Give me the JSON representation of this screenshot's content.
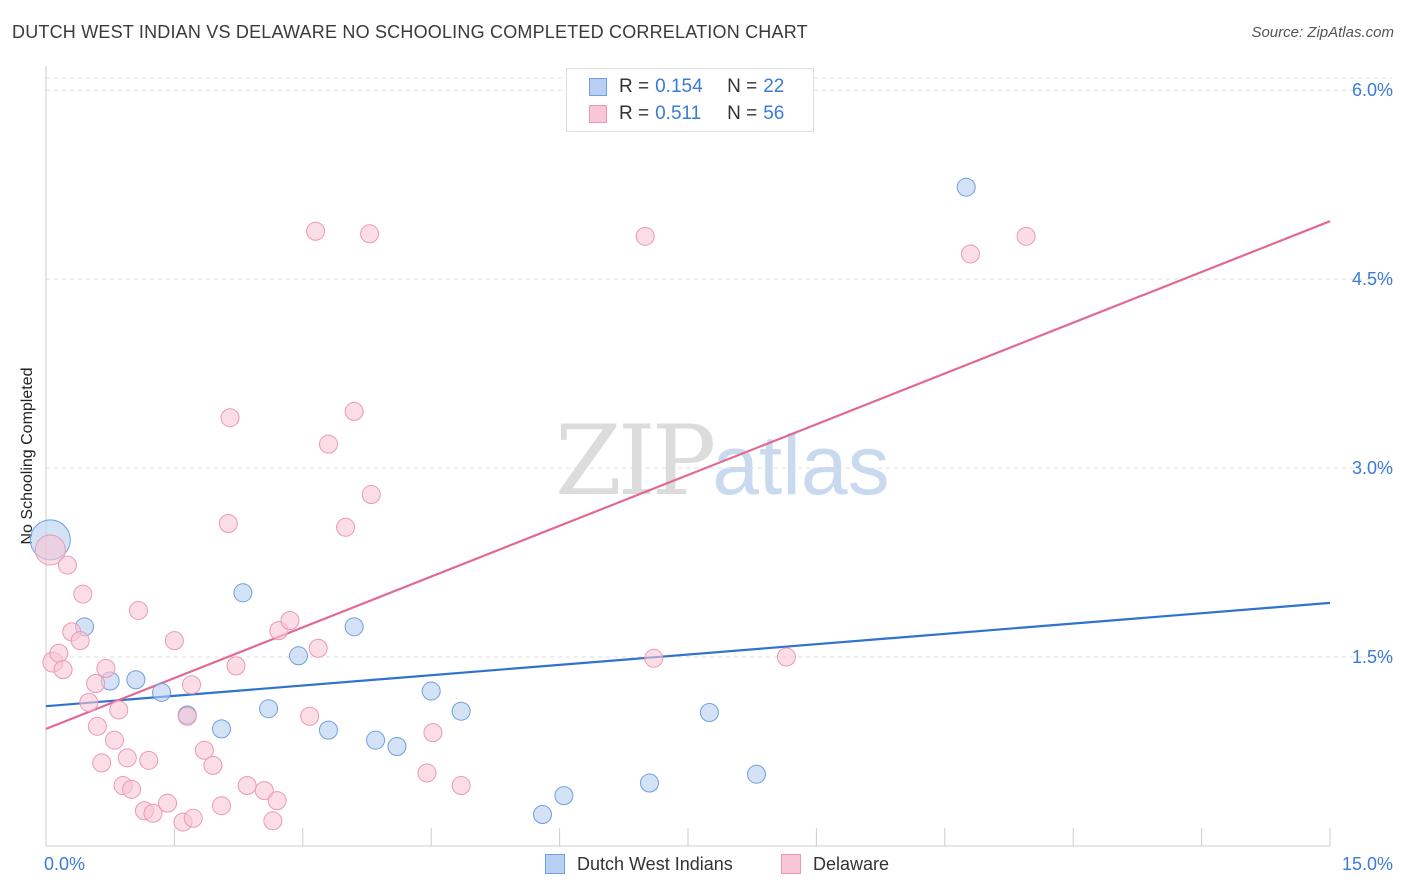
{
  "header": {
    "title": "DUTCH WEST INDIAN VS DELAWARE NO SCHOOLING COMPLETED CORRELATION CHART",
    "source": "Source: ZipAtlas.com"
  },
  "watermark": {
    "zip": "ZIP",
    "atlas": "atlas"
  },
  "legend": {
    "rows": [
      {
        "r_label": "R =",
        "r_value": "0.154",
        "n_label": "N =",
        "n_value": "22"
      },
      {
        "r_label": "R =",
        "r_value": "0.511",
        "n_label": "N =",
        "n_value": "56"
      }
    ]
  },
  "bottom_legend": {
    "blue": "Dutch West Indians",
    "pink": "Delaware"
  },
  "colors": {
    "blue_fill": "#b7cff0",
    "blue_stroke": "#6f9fe0",
    "blue_line": "#2f72d0",
    "pink_fill": "#f8c6d6",
    "pink_stroke": "#ec98b5",
    "pink_line": "#e06a93",
    "tick_label": "#3a7bd5",
    "grid": "#dddddd"
  },
  "chart_data": {
    "type": "scatter",
    "title": "DUTCH WEST INDIAN VS DELAWARE NO SCHOOLING COMPLETED CORRELATION CHART",
    "xlabel": "",
    "ylabel": "No Schooling Completed",
    "xlim": [
      0,
      15
    ],
    "ylim": [
      0,
      6.2
    ],
    "x_tick_labels": [
      "0.0%",
      "15.0%"
    ],
    "y_ticks": [
      1.5,
      3.0,
      4.5,
      6.0
    ],
    "y_tick_labels": [
      "1.5%",
      "3.0%",
      "4.5%",
      "6.0%"
    ],
    "grid": true,
    "series": [
      {
        "name": "Dutch West Indians",
        "color": "blue",
        "points": [
          [
            0.05,
            2.43,
            20
          ],
          [
            0.45,
            1.74,
            9
          ],
          [
            0.75,
            1.31,
            9
          ],
          [
            1.05,
            1.32,
            9
          ],
          [
            1.35,
            1.22,
            9
          ],
          [
            1.65,
            1.04,
            9
          ],
          [
            2.05,
            0.93,
            9
          ],
          [
            2.3,
            2.01,
            9
          ],
          [
            2.6,
            1.09,
            9
          ],
          [
            2.95,
            1.51,
            9
          ],
          [
            3.3,
            0.92,
            9
          ],
          [
            3.6,
            1.74,
            9
          ],
          [
            3.85,
            0.84,
            9
          ],
          [
            4.1,
            0.79,
            9
          ],
          [
            4.5,
            1.23,
            9
          ],
          [
            4.85,
            1.07,
            9
          ],
          [
            5.8,
            0.25,
            9
          ],
          [
            6.05,
            0.4,
            9
          ],
          [
            7.05,
            0.5,
            9
          ],
          [
            7.75,
            1.06,
            9
          ],
          [
            8.3,
            0.57,
            9
          ],
          [
            10.75,
            5.23,
            9
          ]
        ],
        "trend": [
          [
            0,
            1.11
          ],
          [
            15,
            1.93
          ]
        ]
      },
      {
        "name": "Delaware",
        "color": "pink",
        "points": [
          [
            0.05,
            2.35,
            15
          ],
          [
            0.08,
            1.46,
            10
          ],
          [
            0.15,
            1.53,
            9
          ],
          [
            0.2,
            1.4,
            9
          ],
          [
            0.25,
            2.23,
            9
          ],
          [
            0.3,
            1.7,
            9
          ],
          [
            0.4,
            1.63,
            9
          ],
          [
            0.43,
            2.0,
            9
          ],
          [
            0.5,
            1.14,
            9
          ],
          [
            0.58,
            1.29,
            9
          ],
          [
            0.6,
            0.95,
            9
          ],
          [
            0.65,
            0.66,
            9
          ],
          [
            0.7,
            1.41,
            9
          ],
          [
            0.8,
            0.84,
            9
          ],
          [
            0.85,
            1.08,
            9
          ],
          [
            0.9,
            0.48,
            9
          ],
          [
            0.95,
            0.7,
            9
          ],
          [
            1.0,
            0.45,
            9
          ],
          [
            1.08,
            1.87,
            9
          ],
          [
            1.15,
            0.28,
            9
          ],
          [
            1.2,
            0.68,
            9
          ],
          [
            1.25,
            0.26,
            9
          ],
          [
            1.42,
            0.34,
            9
          ],
          [
            1.5,
            1.63,
            9
          ],
          [
            1.6,
            0.19,
            9
          ],
          [
            1.65,
            1.03,
            9
          ],
          [
            1.7,
            1.28,
            9
          ],
          [
            1.72,
            0.22,
            9
          ],
          [
            1.85,
            0.76,
            9
          ],
          [
            1.95,
            0.64,
            9
          ],
          [
            2.05,
            0.32,
            9
          ],
          [
            2.13,
            2.56,
            9
          ],
          [
            2.15,
            3.4,
            9
          ],
          [
            2.22,
            1.43,
            9
          ],
          [
            2.35,
            0.48,
            9
          ],
          [
            2.55,
            0.44,
            9
          ],
          [
            2.65,
            0.2,
            9
          ],
          [
            2.7,
            0.36,
            9
          ],
          [
            2.72,
            1.71,
            9
          ],
          [
            2.85,
            1.79,
            9
          ],
          [
            3.08,
            1.03,
            9
          ],
          [
            3.18,
            1.57,
            9
          ],
          [
            3.15,
            4.88,
            9
          ],
          [
            3.3,
            3.19,
            9
          ],
          [
            3.5,
            2.53,
            9
          ],
          [
            3.6,
            3.45,
            9
          ],
          [
            3.8,
            2.79,
            9
          ],
          [
            3.78,
            4.86,
            9
          ],
          [
            4.45,
            0.58,
            9
          ],
          [
            4.52,
            0.9,
            9
          ],
          [
            4.85,
            0.48,
            9
          ],
          [
            7.0,
            4.84,
            9
          ],
          [
            7.1,
            1.49,
            9
          ],
          [
            8.65,
            1.5,
            9
          ],
          [
            10.8,
            4.7,
            9
          ],
          [
            11.45,
            4.84,
            9
          ]
        ],
        "trend": [
          [
            0,
            0.93
          ],
          [
            15,
            4.96
          ]
        ]
      }
    ]
  }
}
